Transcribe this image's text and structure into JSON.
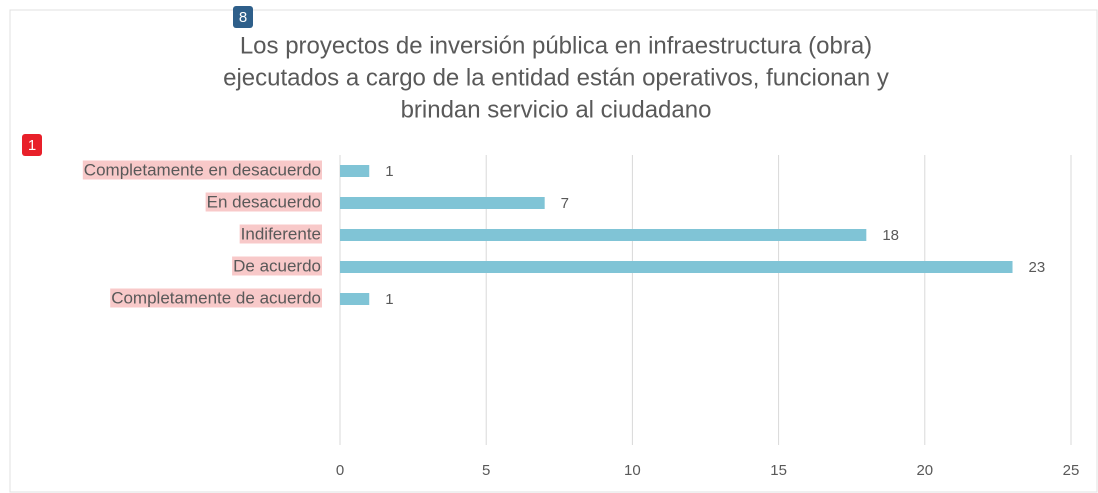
{
  "chart_data": {
    "type": "bar",
    "orientation": "horizontal",
    "title": [
      "Los proyectos de inversión pública en infraestructura (obra)",
      "ejecutados a cargo de la entidad están operativos, funcionan y",
      "brindan servicio al ciudadano"
    ],
    "categories": [
      "Completamente en desacuerdo",
      "En desacuerdo",
      "Indiferente",
      "De acuerdo",
      "Completamente de acuerdo"
    ],
    "values": [
      1,
      7,
      18,
      23,
      1
    ],
    "color": "#80c4d6",
    "xlim": [
      0,
      25
    ],
    "xticks": [
      0,
      5,
      10,
      15,
      20,
      25
    ],
    "grid": true,
    "annotations": [
      "8",
      "1"
    ]
  }
}
